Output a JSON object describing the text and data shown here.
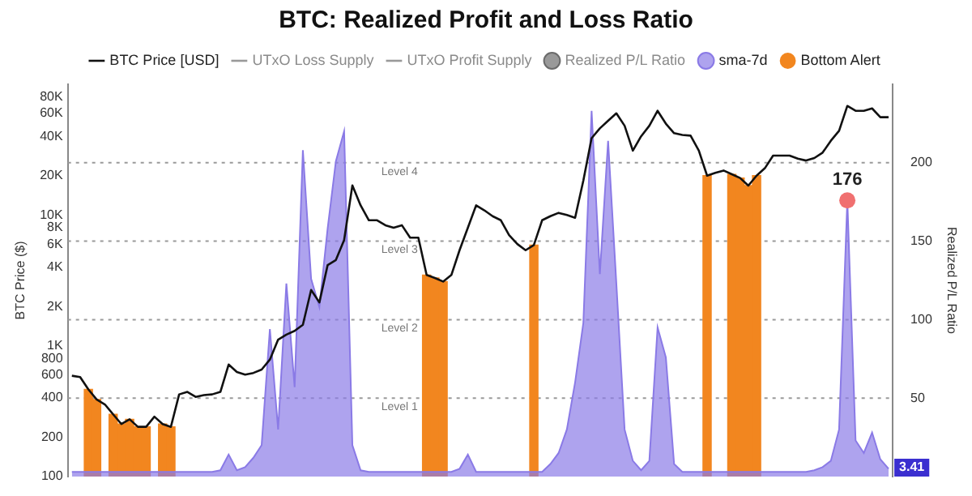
{
  "chart_data": {
    "type": "line",
    "title": "BTC: Realized Profit and Loss Ratio",
    "ylabel": "BTC Price ($)",
    "y2label": "Realized P/L Ratio",
    "categories": [
      null,
      null,
      null,
      null,
      null,
      null,
      null,
      null,
      null,
      null,
      null,
      null,
      null,
      null,
      null,
      null,
      null,
      null,
      null,
      null,
      null,
      null,
      null,
      null,
      null,
      null,
      null,
      null,
      null,
      null,
      null,
      null,
      null,
      null,
      null,
      null,
      null,
      null,
      null,
      null,
      null,
      null,
      null,
      null,
      null,
      null,
      null,
      null,
      null,
      null,
      null,
      null,
      null,
      null,
      null,
      null,
      null,
      null,
      null,
      null,
      null,
      null,
      null,
      null,
      null,
      null,
      null,
      null,
      null,
      null,
      null,
      null,
      null,
      null,
      null,
      null,
      null,
      null,
      null,
      null,
      null,
      null,
      null,
      null,
      null,
      null,
      null,
      null,
      null,
      null,
      null,
      null,
      null,
      null,
      null,
      null,
      null,
      null,
      null,
      null
    ],
    "series": [
      {
        "name": "BTC Price [USD]",
        "color": "#111111",
        "values": [
          590,
          577,
          464,
          389,
          356,
          299,
          252,
          274,
          240,
          240,
          287,
          252,
          240,
          425,
          444,
          407,
          420,
          425,
          444,
          719,
          631,
          602,
          620,
          658,
          785,
          1114,
          1217,
          1300,
          1449,
          2674,
          2148,
          4140,
          4530,
          6430,
          16830,
          11860,
          9120,
          9120,
          8360,
          7990,
          8360,
          6720,
          6720,
          3480,
          3300,
          3100,
          3480,
          5400,
          8000,
          11860,
          10860,
          9800,
          9120,
          7010,
          6000,
          5380,
          5890,
          9120,
          9800,
          10390,
          10000,
          9530,
          18380,
          38700,
          46000,
          52600,
          60000,
          48200,
          31100,
          40000,
          48200,
          62700,
          50000,
          42300,
          41000,
          40500,
          31100,
          20000,
          21000,
          21900,
          20500,
          19200,
          16800,
          20000,
          22800,
          28500,
          28500,
          28500,
          27000,
          26100,
          27300,
          30000,
          37000,
          44100,
          68300,
          62700,
          62700,
          65400,
          56000,
          56000
        ]
      },
      {
        "name": "UTxO Loss Supply",
        "type": "line",
        "color": "#999999",
        "values": [
          null,
          null,
          null,
          null,
          null,
          null,
          null,
          null,
          null,
          null,
          null,
          null,
          null,
          null,
          null,
          null,
          null,
          null,
          null,
          null,
          null,
          null,
          null,
          null,
          null,
          null,
          null,
          null,
          null,
          null,
          null,
          null,
          null,
          null,
          null,
          null,
          null,
          null,
          null,
          null,
          null,
          null,
          null,
          null,
          null,
          null,
          null,
          null,
          null,
          null,
          null,
          null,
          null,
          null,
          null,
          null,
          null,
          null,
          null,
          null,
          null,
          null,
          null,
          null,
          null,
          null,
          null,
          null,
          null,
          null,
          null,
          null,
          null,
          null,
          null,
          null,
          null,
          null,
          null,
          null,
          null,
          null,
          null,
          null,
          null,
          null,
          null,
          null,
          null,
          null,
          null,
          null,
          null,
          null,
          null,
          null,
          null,
          null,
          null,
          null
        ]
      },
      {
        "name": "UTxO Profit Supply",
        "type": "line",
        "color": "#999999",
        "values": [
          null,
          null,
          null,
          null,
          null,
          null,
          null,
          null,
          null,
          null,
          null,
          null,
          null,
          null,
          null,
          null,
          null,
          null,
          null,
          null,
          null,
          null,
          null,
          null,
          null,
          null,
          null,
          null,
          null,
          null,
          null,
          null,
          null,
          null,
          null,
          null,
          null,
          null,
          null,
          null,
          null,
          null,
          null,
          null,
          null,
          null,
          null,
          null,
          null,
          null,
          null,
          null,
          null,
          null,
          null,
          null,
          null,
          null,
          null,
          null,
          null,
          null,
          null,
          null,
          null,
          null,
          null,
          null,
          null,
          null,
          null,
          null,
          null,
          null,
          null,
          null,
          null,
          null,
          null,
          null,
          null,
          null,
          null,
          null,
          null,
          null,
          null,
          null,
          null,
          null,
          null,
          null,
          null,
          null,
          null,
          null,
          null,
          null,
          null,
          null
        ]
      },
      {
        "name": "Realized P/L Ratio",
        "type": "area",
        "axis": "y2",
        "color": "#6b6b6b",
        "values": [
          null,
          null,
          null,
          null,
          null,
          null,
          null,
          null,
          null,
          null,
          null,
          null,
          null,
          null,
          null,
          null,
          null,
          null,
          null,
          null,
          null,
          null,
          null,
          null,
          null,
          null,
          null,
          null,
          null,
          null,
          null,
          null,
          null,
          null,
          null,
          null,
          null,
          null,
          null,
          null,
          null,
          null,
          null,
          null,
          null,
          null,
          null,
          null,
          null,
          null,
          null,
          null,
          null,
          null,
          null,
          null,
          null,
          null,
          null,
          null,
          null,
          null,
          null,
          null,
          null,
          null,
          null,
          null,
          null,
          null,
          null,
          null,
          null,
          null,
          null,
          null,
          null,
          null,
          null,
          null,
          null,
          null,
          null,
          null,
          null,
          null,
          null,
          null,
          null,
          null,
          null,
          null,
          null,
          null,
          null,
          null,
          null,
          null,
          null,
          null
        ]
      },
      {
        "name": "sma-7d",
        "type": "area",
        "axis": "y2",
        "color": "#8a7ae6",
        "values": [
          3,
          3,
          3,
          3,
          3,
          3,
          3,
          3,
          3,
          3,
          3,
          3,
          3,
          3,
          3,
          3,
          3,
          3,
          4,
          14,
          4,
          6,
          12,
          20,
          94,
          30,
          123,
          57,
          208,
          126,
          108,
          158,
          201,
          220,
          20,
          4,
          3,
          3,
          3,
          3,
          3,
          3,
          3,
          3,
          3,
          3,
          3,
          5,
          14,
          3,
          3,
          3,
          3,
          3,
          3,
          3,
          3,
          3,
          8,
          15,
          30,
          60,
          98,
          233,
          129,
          214,
          123,
          30,
          10,
          4,
          10,
          95,
          76,
          8,
          3,
          3,
          3,
          3,
          3,
          3,
          3,
          3,
          3,
          3,
          3,
          3,
          3,
          3,
          3,
          3,
          4,
          6,
          10,
          30,
          176,
          23,
          15,
          28,
          11,
          5
        ]
      },
      {
        "name": "Bottom Alert",
        "type": "bar",
        "color": "#f2861f",
        "values": [
          null,
          null,
          464,
          389,
          null,
          299,
          252,
          274,
          240,
          240,
          null,
          252,
          240,
          null,
          null,
          null,
          null,
          null,
          null,
          null,
          null,
          null,
          null,
          null,
          null,
          null,
          null,
          null,
          null,
          null,
          null,
          null,
          null,
          null,
          null,
          null,
          null,
          null,
          null,
          null,
          null,
          null,
          null,
          3480,
          3300,
          3100,
          null,
          null,
          null,
          null,
          null,
          null,
          null,
          null,
          null,
          null,
          5890,
          null,
          null,
          null,
          null,
          null,
          null,
          null,
          null,
          null,
          null,
          null,
          null,
          null,
          null,
          null,
          null,
          null,
          null,
          null,
          null,
          20000,
          null,
          null,
          20500,
          19200,
          16800,
          20000,
          null,
          null,
          null,
          null,
          null,
          null,
          null,
          null,
          null,
          null,
          null,
          null,
          null,
          null,
          null,
          null
        ]
      }
    ],
    "ylim": [
      100,
      100000
    ],
    "log": "y",
    "yticks": [
      {
        "value": 100,
        "label": "100"
      },
      {
        "value": 200,
        "label": "200"
      },
      {
        "value": 400,
        "label": "400"
      },
      {
        "value": 600,
        "label": "600"
      },
      {
        "value": 800,
        "label": "800"
      },
      {
        "value": 1000,
        "label": "1K"
      },
      {
        "value": 2000,
        "label": "2K"
      },
      {
        "value": 4000,
        "label": "4K"
      },
      {
        "value": 6000,
        "label": "6K"
      },
      {
        "value": 8000,
        "label": "8K"
      },
      {
        "value": 10000,
        "label": "10K"
      },
      {
        "value": 20000,
        "label": "20K"
      },
      {
        "value": 40000,
        "label": "40K"
      },
      {
        "value": 60000,
        "label": "60K"
      },
      {
        "value": 80000,
        "label": "80K"
      }
    ],
    "y2lim": [
      0,
      250
    ],
    "y2ticks": [
      50,
      100,
      150,
      200
    ],
    "ref_lines": [
      {
        "axis": "y2",
        "value": 50,
        "label": "Level 1",
        "color": "#9a9a9a",
        "line_style": "dotted"
      },
      {
        "axis": "y2",
        "value": 100,
        "label": "Level 2",
        "color": "#9a9a9a",
        "line_style": "dotted"
      },
      {
        "axis": "y2",
        "value": 150,
        "label": "Level 3",
        "color": "#9a9a9a",
        "line_style": "dotted"
      },
      {
        "axis": "y2",
        "value": 200,
        "label": "Level 4",
        "color": "#9a9a9a",
        "line_style": "dotted"
      }
    ],
    "annotations": [
      "176",
      "3.41"
    ],
    "legend": "top",
    "grid": false,
    "marker": "none",
    "tick_labels": "y"
  }
}
